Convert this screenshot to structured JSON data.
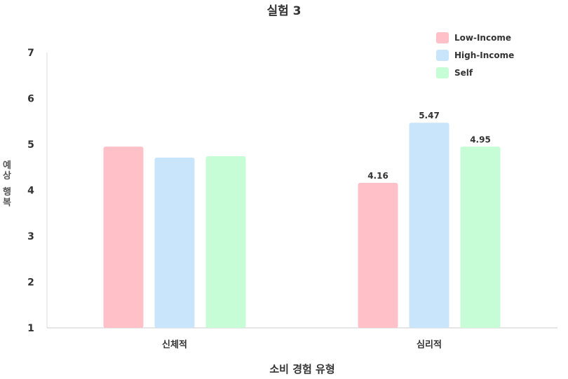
{
  "chart_data": {
    "type": "bar",
    "title": "실험 3",
    "xlabel": "소비 경험 유형",
    "ylabel": "예상 행복",
    "ylim": [
      1,
      7
    ],
    "yticks": [
      "1",
      "2",
      "3",
      "4",
      "5",
      "6",
      "7"
    ],
    "categories": [
      "신체적",
      "심리적"
    ],
    "series": [
      {
        "name": "Low-Income",
        "values": [
          4.95,
          4.16
        ],
        "labels": [
          "",
          "4.16"
        ],
        "color": "#ffc0c7"
      },
      {
        "name": "High-Income",
        "values": [
          4.71,
          5.47
        ],
        "labels": [
          "",
          "5.47"
        ],
        "color": "#c8e5fc"
      },
      {
        "name": "Self",
        "values": [
          4.74,
          4.95
        ],
        "labels": [
          "",
          "4.95"
        ],
        "color": "#c6fdd6"
      }
    ],
    "grid": false,
    "legend_position": "top-right"
  }
}
